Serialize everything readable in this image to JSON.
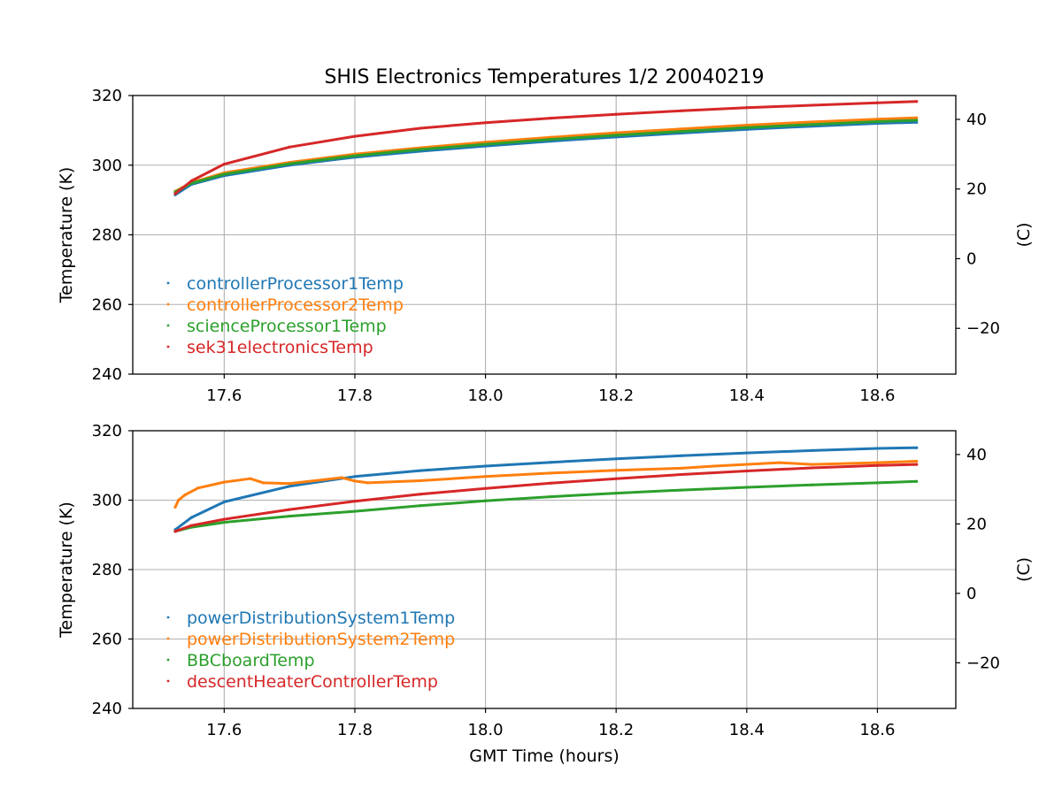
{
  "figure": {
    "title": "SHIS Electronics Temperatures 1/2 20040219",
    "xlabel": "GMT Time (hours)"
  },
  "chart_data": [
    {
      "type": "scatter",
      "ylabel": "Temperature (K)",
      "y2label": "(C)",
      "xlim": [
        17.46,
        18.72
      ],
      "ylim": [
        240,
        320
      ],
      "y2lim": [
        -33.15,
        46.85
      ],
      "xticks": [
        17.6,
        17.8,
        18.0,
        18.2,
        18.4,
        18.6
      ],
      "xtick_labels": [
        "17.6",
        "17.8",
        "18.0",
        "18.2",
        "18.4",
        "18.6"
      ],
      "yticks": [
        240,
        260,
        280,
        300,
        320
      ],
      "ytick_labels": [
        "240",
        "260",
        "280",
        "300",
        "320"
      ],
      "y2ticks": [
        -20,
        0,
        20,
        40
      ],
      "y2tick_labels": [
        "−20",
        "0",
        "20",
        "40"
      ],
      "grid": true,
      "legend_position": "lower-left",
      "x": [
        17.525,
        17.55,
        17.6,
        17.7,
        17.8,
        17.9,
        18.0,
        18.1,
        18.2,
        18.3,
        18.4,
        18.5,
        18.6,
        18.66
      ],
      "series": [
        {
          "name": "controllerProcessor1Temp",
          "color": "#1f77b4",
          "values": [
            291.5,
            294.5,
            297.0,
            300.0,
            302.3,
            304.0,
            305.5,
            306.9,
            308.1,
            309.2,
            310.3,
            311.2,
            312.0,
            312.3
          ]
        },
        {
          "name": "controllerProcessor2Temp",
          "color": "#ff7f0e",
          "values": [
            292.5,
            295.0,
            297.8,
            300.8,
            303.2,
            305.0,
            306.6,
            308.0,
            309.3,
            310.4,
            311.5,
            312.4,
            313.2,
            313.6
          ]
        },
        {
          "name": "scienceProcessor1Temp",
          "color": "#2ca02c",
          "values": [
            292.3,
            294.8,
            297.4,
            300.4,
            302.7,
            304.5,
            306.0,
            307.4,
            308.6,
            309.7,
            310.8,
            311.7,
            312.5,
            312.9
          ]
        },
        {
          "name": "sek31electronicsTemp",
          "color": "#d62728",
          "values": [
            291.8,
            295.5,
            300.3,
            305.2,
            308.3,
            310.6,
            312.2,
            313.5,
            314.6,
            315.6,
            316.5,
            317.2,
            317.9,
            318.3
          ]
        }
      ]
    },
    {
      "type": "scatter",
      "ylabel": "Temperature (K)",
      "y2label": "(C)",
      "xlabel": "GMT Time (hours)",
      "xlim": [
        17.46,
        18.72
      ],
      "ylim": [
        240,
        320
      ],
      "y2lim": [
        -33.15,
        46.85
      ],
      "xticks": [
        17.6,
        17.8,
        18.0,
        18.2,
        18.4,
        18.6
      ],
      "xtick_labels": [
        "17.6",
        "17.8",
        "18.0",
        "18.2",
        "18.4",
        "18.6"
      ],
      "yticks": [
        240,
        260,
        280,
        300,
        320
      ],
      "ytick_labels": [
        "240",
        "260",
        "280",
        "300",
        "320"
      ],
      "y2ticks": [
        -20,
        0,
        20,
        40
      ],
      "y2tick_labels": [
        "−20",
        "0",
        "20",
        "40"
      ],
      "grid": true,
      "legend_position": "lower-left",
      "series": [
        {
          "name": "powerDistributionSystem1Temp",
          "color": "#1f77b4",
          "x": [
            17.525,
            17.55,
            17.6,
            17.7,
            17.8,
            17.9,
            18.0,
            18.1,
            18.2,
            18.3,
            18.4,
            18.5,
            18.6,
            18.66
          ],
          "values": [
            291.5,
            295.0,
            299.5,
            304.0,
            306.8,
            308.5,
            309.8,
            310.9,
            311.9,
            312.8,
            313.6,
            314.3,
            314.9,
            315.1
          ]
        },
        {
          "name": "powerDistributionSystem2Temp",
          "color": "#ff7f0e",
          "x": [
            17.525,
            17.53,
            17.54,
            17.56,
            17.6,
            17.64,
            17.66,
            17.7,
            17.78,
            17.8,
            17.82,
            17.9,
            18.0,
            18.1,
            18.2,
            18.3,
            18.35,
            18.45,
            18.5,
            18.6,
            18.66
          ],
          "values": [
            298.0,
            300.0,
            301.5,
            303.5,
            305.2,
            306.2,
            305.0,
            304.8,
            306.5,
            305.5,
            305.0,
            305.6,
            306.8,
            307.8,
            308.6,
            309.2,
            309.8,
            310.8,
            310.3,
            310.8,
            311.2
          ]
        },
        {
          "name": "BBCboardTemp",
          "color": "#2ca02c",
          "x": [
            17.525,
            17.55,
            17.6,
            17.7,
            17.8,
            17.9,
            18.0,
            18.1,
            18.2,
            18.3,
            18.4,
            18.5,
            18.6,
            18.66
          ],
          "values": [
            291.0,
            292.2,
            293.6,
            295.4,
            296.8,
            298.4,
            299.8,
            301.0,
            302.0,
            302.9,
            303.7,
            304.4,
            305.0,
            305.4
          ]
        },
        {
          "name": "descentHeaterControllerTemp",
          "color": "#d62728",
          "x": [
            17.525,
            17.55,
            17.6,
            17.7,
            17.8,
            17.9,
            18.0,
            18.1,
            18.2,
            18.3,
            18.4,
            18.5,
            18.6,
            18.66
          ],
          "values": [
            291.0,
            292.7,
            294.5,
            297.3,
            299.7,
            301.7,
            303.4,
            304.9,
            306.2,
            307.4,
            308.4,
            309.3,
            310.0,
            310.3
          ]
        }
      ]
    }
  ]
}
